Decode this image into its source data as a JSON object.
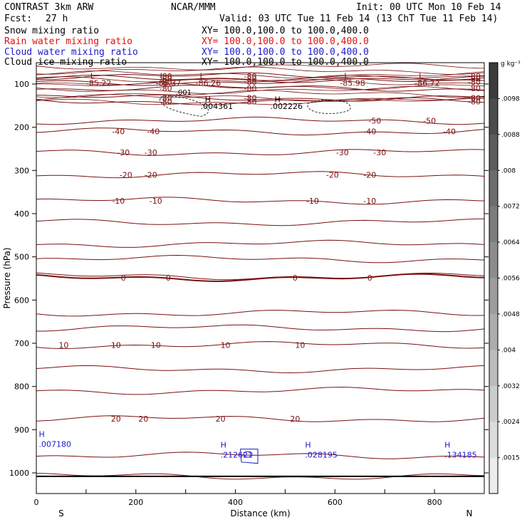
{
  "header": {
    "title": "CONTRAST  3km ARW",
    "center": "NCAR/MMM",
    "init": "Init: 00 UTC Mon 10 Feb 14",
    "fcst_label": "Fcst:",
    "fcst_value": "27 h",
    "valid": "Valid: 03 UTC Tue 11 Feb 14 (13 ChT Tue 11 Feb 14)"
  },
  "fields": [
    {
      "name": "Snow mixing ratio",
      "xy": "XY= 100.0,100.0 to 100.0,400.0",
      "color": "#000000"
    },
    {
      "name": "Rain water mixing ratio",
      "xy": "XY= 100.0,100.0 to 100.0,400.0",
      "color": "#e01010"
    },
    {
      "name": "Cloud water mixing ratio",
      "xy": "XY= 100.0,100.0 to 100.0,400.0",
      "color": "#1a1acc"
    },
    {
      "name": "Cloud ice mixing ratio",
      "xy": "XY= 100.0,100.0 to 100.0,400.0",
      "color": "#000000"
    }
  ],
  "chart_data": {
    "type": "contour-cross-section",
    "xlabel": "Distance (km)",
    "ylabel": "Pressure (hPa)",
    "xlim": [
      0,
      900
    ],
    "ylim": [
      1050,
      50
    ],
    "x_ticks": [
      0,
      200,
      400,
      600,
      800
    ],
    "y_ticks": [
      100,
      200,
      300,
      400,
      500,
      600,
      700,
      800,
      900,
      1000
    ],
    "end_labels": {
      "left": "S",
      "right": "N"
    },
    "colorbar": {
      "unit": "g kg⁻¹",
      "ticks": [
        ".0098",
        ".0088",
        ".008",
        ".0072",
        ".0064",
        ".0056",
        ".0048",
        ".004",
        ".0032",
        ".0024",
        ".0015"
      ],
      "colors": [
        "#3c3c3c",
        "#4c4c4c",
        "#5c5c5c",
        "#6c6c6c",
        "#7c7c7c",
        "#8c8c8c",
        "#9c9c9c",
        "#acacac",
        "#bcbcbc",
        "#cccccc",
        "#dcdcdc",
        "#ececec"
      ]
    },
    "temperature_contours": {
      "color": "#7a1010",
      "levels": [
        {
          "value": "-80",
          "label_x": [
            260,
            430,
            880
          ],
          "p": [
            82,
            88,
            95,
            110,
            132,
            140
          ]
        },
        {
          "value": "-50",
          "label_x": [
            680,
            790
          ],
          "p": [
            185
          ]
        },
        {
          "value": "-40",
          "label_x": [
            165,
            235,
            670,
            830
          ],
          "p": [
            210
          ]
        },
        {
          "value": "-30",
          "label_x": [
            175,
            230,
            615,
            690
          ],
          "p": [
            258
          ]
        },
        {
          "value": "-20",
          "label_x": [
            180,
            230,
            595,
            670
          ],
          "p": [
            310
          ]
        },
        {
          "value": "-10",
          "label_x": [
            165,
            240,
            555,
            670
          ],
          "p": [
            370
          ]
        },
        {
          "value": "0",
          "label_x": [
            175,
            265,
            520,
            670
          ],
          "p": [
            548
          ]
        },
        {
          "value": "10",
          "label_x": [
            55,
            160,
            240,
            380,
            530
          ],
          "p": [
            704
          ]
        },
        {
          "value": "20",
          "label_x": [
            160,
            215,
            370,
            520
          ],
          "p": [
            875
          ]
        }
      ],
      "extra_lines_p": [
        420,
        470,
        505,
        545,
        630,
        665,
        760,
        810,
        960,
        1008
      ]
    },
    "cold_minima": [
      {
        "mark": "L",
        "value": "-85.22",
        "x": 100
      },
      {
        "mark": "L",
        "value": "-86.37",
        "x": 240
      },
      {
        "mark": "L",
        "value": "-86.26",
        "x": 320
      },
      {
        "mark": "L",
        "value": "-85.98",
        "x": 610
      },
      {
        "mark": "L",
        "value": "-86.72",
        "x": 760
      }
    ],
    "ice_maxima": [
      {
        "mark": "H",
        "value": ".004361",
        "x": 330,
        "p": 150
      },
      {
        "mark": "H",
        "value": ".002226",
        "x": 470,
        "p": 150
      }
    ],
    "ice_contour_label": ".001",
    "cloud_water_maxima": [
      {
        "mark": "H",
        "value": ".007180",
        "x": 5,
        "p": 930
      },
      {
        "mark": "H",
        "value": ".212621",
        "x": 370,
        "p": 955
      },
      {
        "mark": "H",
        "value": ".028195",
        "x": 540,
        "p": 955
      },
      {
        "mark": "H",
        "value": ".134185",
        "x": 820,
        "p": 955
      }
    ]
  }
}
